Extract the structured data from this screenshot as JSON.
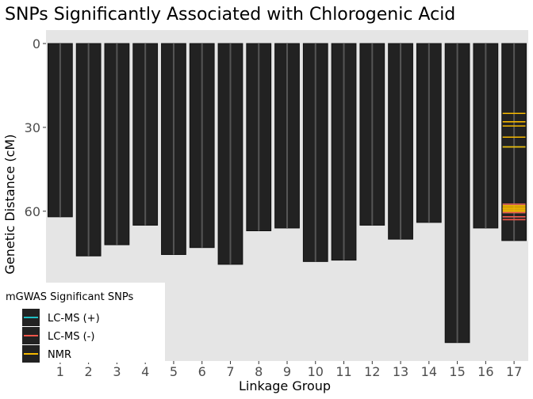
{
  "chart_data": {
    "type": "bar",
    "title": "SNPs Significantly Associated with Chlorogenic Acid",
    "xlabel": "Linkage Group",
    "ylabel": "Genetic Distance (cM)",
    "y_reversed": true,
    "ylim": [
      0,
      100
    ],
    "yticks": [
      0,
      30,
      60
    ],
    "grid": false,
    "categories": [
      "1",
      "2",
      "3",
      "4",
      "5",
      "6",
      "7",
      "8",
      "9",
      "10",
      "11",
      "12",
      "13",
      "14",
      "15",
      "16",
      "17"
    ],
    "values": [
      62,
      76,
      72,
      65,
      75.5,
      73,
      79,
      67,
      66,
      78,
      77.5,
      65,
      70,
      64,
      107,
      66,
      70.5
    ],
    "colors": {
      "bar": "#222222",
      "bar_edge": "#111111",
      "bar_center_line": "#555555",
      "panel": "#e5e5e5",
      "tick": "#333333"
    },
    "legend": {
      "title": "mGWAS Significant SNPs",
      "position": "bottom-left",
      "entries": [
        {
          "label": "LC-MS (+)",
          "color": "#1fbfc4"
        },
        {
          "label": "LC-MS (-)",
          "color": "#f2564a"
        },
        {
          "label": "NMR",
          "color": "#f5b800"
        }
      ]
    },
    "series": [
      {
        "name": "LC-MS (+)",
        "group": "17",
        "color": "#1fbfc4",
        "positions": [
          33.5,
          37,
          57.5,
          59,
          60.5,
          62
        ]
      },
      {
        "name": "LC-MS (-)",
        "group": "17",
        "color": "#f2564a",
        "positions": [
          57.5,
          59,
          60.5,
          62,
          63
        ]
      },
      {
        "name": "NMR",
        "group": "17",
        "color": "#f5b800",
        "positions": [
          25,
          28,
          29.5,
          33.5,
          37,
          58,
          58.5,
          59,
          59.5,
          60
        ]
      }
    ]
  }
}
